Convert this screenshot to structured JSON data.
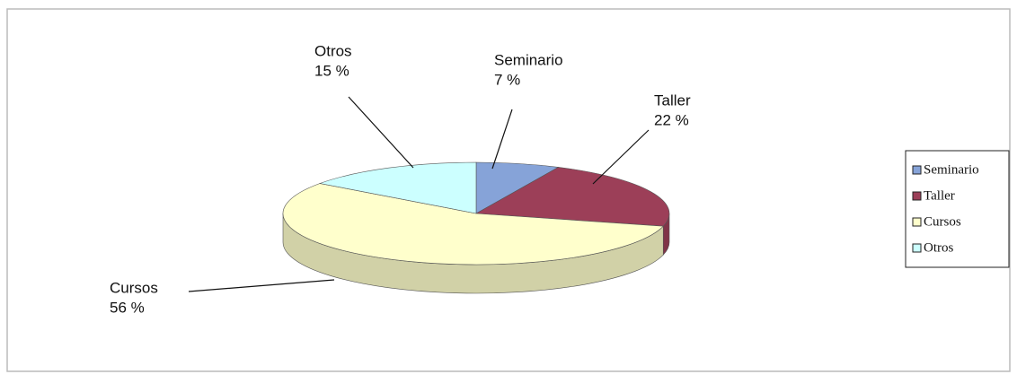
{
  "chart_data": {
    "type": "pie3d",
    "categories": [
      "Seminario",
      "Taller",
      "Cursos",
      "Otros"
    ],
    "values": [
      7,
      22,
      56,
      15
    ],
    "value_labels": [
      "7 %",
      "22 %",
      "56 %",
      "15 %"
    ],
    "colors": [
      "#86a3d8",
      "#9c3f58",
      "#ffffcc",
      "#ccffff"
    ],
    "legend": "right"
  }
}
